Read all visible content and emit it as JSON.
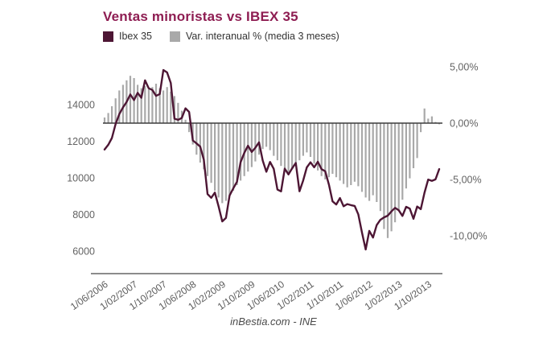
{
  "header": {
    "title": "Ventas minoristas vs IBEX 35"
  },
  "legend": {
    "items": [
      {
        "label": "Ibex 35",
        "color": "#4d1634"
      },
      {
        "label": "Var. interanual % (media 3 meses)",
        "color": "#a9a9a9"
      }
    ]
  },
  "footer": {
    "attribution": "inBestia.com - INE"
  },
  "colors": {
    "title": "#8e1d52",
    "line": "#4d1634",
    "bar": "#a9a9a9",
    "axis_text": "#636363",
    "zero_line": "#3c3c3c",
    "axis_line": "#8c8c8c",
    "background": "#ffffff"
  },
  "chart_data": {
    "type": "line+bar",
    "title": "Ventas minoristas vs IBEX 35",
    "x": [
      "1/06/2006",
      "1/07/2006",
      "1/08/2006",
      "1/09/2006",
      "1/10/2006",
      "1/11/2006",
      "1/12/2006",
      "1/01/2007",
      "1/02/2007",
      "1/03/2007",
      "1/04/2007",
      "1/05/2007",
      "1/06/2007",
      "1/07/2007",
      "1/08/2007",
      "1/09/2007",
      "1/10/2007",
      "1/11/2007",
      "1/12/2007",
      "1/01/2008",
      "1/02/2008",
      "1/03/2008",
      "1/04/2008",
      "1/05/2008",
      "1/06/2008",
      "1/07/2008",
      "1/08/2008",
      "1/09/2008",
      "1/10/2008",
      "1/11/2008",
      "1/12/2008",
      "1/01/2009",
      "1/02/2009",
      "1/03/2009",
      "1/04/2009",
      "1/05/2009",
      "1/06/2009",
      "1/07/2009",
      "1/08/2009",
      "1/09/2009",
      "1/10/2009",
      "1/11/2009",
      "1/12/2009",
      "1/01/2010",
      "1/02/2010",
      "1/03/2010",
      "1/04/2010",
      "1/05/2010",
      "1/06/2010",
      "1/07/2010",
      "1/08/2010",
      "1/09/2010",
      "1/10/2010",
      "1/11/2010",
      "1/12/2010",
      "1/01/2011",
      "1/02/2011",
      "1/03/2011",
      "1/04/2011",
      "1/05/2011",
      "1/06/2011",
      "1/07/2011",
      "1/08/2011",
      "1/09/2011",
      "1/10/2011",
      "1/11/2011",
      "1/12/2011",
      "1/01/2012",
      "1/02/2012",
      "1/03/2012",
      "1/04/2012",
      "1/05/2012",
      "1/06/2012",
      "1/07/2012",
      "1/08/2012",
      "1/09/2012",
      "1/10/2012",
      "1/11/2012",
      "1/12/2012",
      "1/01/2013",
      "1/02/2013",
      "1/03/2013",
      "1/04/2013",
      "1/05/2013",
      "1/06/2013",
      "1/07/2013",
      "1/08/2013",
      "1/09/2013",
      "1/10/2013",
      "1/11/2013",
      "1/12/2013",
      "1/01/2014"
    ],
    "x_ticks": [
      {
        "i": 0,
        "label": "1/06/2006"
      },
      {
        "i": 8,
        "label": "1/02/2007"
      },
      {
        "i": 16,
        "label": "1/10/2007"
      },
      {
        "i": 24,
        "label": "1/06/2008"
      },
      {
        "i": 32,
        "label": "1/02/2009"
      },
      {
        "i": 40,
        "label": "1/10/2009"
      },
      {
        "i": 48,
        "label": "1/06/2010"
      },
      {
        "i": 56,
        "label": "1/02/2011"
      },
      {
        "i": 64,
        "label": "1/10/2011"
      },
      {
        "i": 72,
        "label": "1/06/2012"
      },
      {
        "i": 80,
        "label": "1/02/2013"
      },
      {
        "i": 88,
        "label": "1/10/2013"
      }
    ],
    "series": [
      {
        "name": "Ibex 35",
        "type": "line",
        "axis": "left",
        "values": [
          11549,
          11805,
          12175,
          12935,
          13480,
          13849,
          14147,
          14553,
          14248,
          14641,
          14374,
          15329,
          14892,
          14802,
          14479,
          14576,
          15890,
          15759,
          15182,
          13229,
          13170,
          13269,
          13798,
          13600,
          12046,
          11881,
          11707,
          10987,
          9116,
          8910,
          9195,
          8450,
          7621,
          7815,
          9038,
          9424,
          9787,
          10855,
          11365,
          11756,
          11414,
          11644,
          11940,
          10947,
          10333,
          10871,
          10492,
          9359,
          9263,
          10499,
          10187,
          10514,
          10812,
          9267,
          9859,
          10571,
          10850,
          10576,
          10879,
          10476,
          10359,
          9630,
          8718,
          8546,
          8895,
          8449,
          8566,
          8509,
          8465,
          8008,
          7011,
          6090,
          7102,
          6738,
          7420,
          7708,
          7842,
          7934,
          8168,
          8362,
          8230,
          7920,
          8419,
          8321,
          7763,
          8434,
          8290,
          9186,
          9908,
          9838,
          9916,
          10480
        ]
      },
      {
        "name": "Var. interanual % (media 3 meses)",
        "type": "bar",
        "axis": "right",
        "values": [
          0.5,
          0.9,
          1.5,
          2.2,
          2.9,
          3.4,
          3.8,
          4.2,
          4.0,
          3.4,
          3.1,
          3.3,
          3.0,
          3.2,
          3.5,
          3.1,
          2.9,
          3.2,
          2.8,
          2.4,
          1.8,
          1.1,
          0.3,
          -0.8,
          -1.9,
          -2.8,
          -3.5,
          -4.1,
          -4.7,
          -5.3,
          -6.0,
          -6.6,
          -7.1,
          -6.9,
          -6.4,
          -6.0,
          -5.5,
          -5.1,
          -4.7,
          -4.3,
          -3.9,
          -3.4,
          -2.8,
          -2.3,
          -2.1,
          -2.4,
          -2.9,
          -3.3,
          -3.8,
          -4.2,
          -4.4,
          -4.1,
          -3.7,
          -3.3,
          -2.9,
          -2.6,
          -3.0,
          -3.6,
          -4.2,
          -4.7,
          -5.0,
          -4.8,
          -4.5,
          -4.8,
          -5.1,
          -5.4,
          -5.7,
          -5.5,
          -5.2,
          -5.6,
          -6.1,
          -6.6,
          -6.9,
          -6.4,
          -7.0,
          -7.8,
          -9.4,
          -10.2,
          -9.6,
          -8.8,
          -7.8,
          -6.8,
          -5.8,
          -4.9,
          -4.0,
          -3.1,
          -0.8,
          1.3,
          0.4,
          0.6,
          0.1,
          -0.1
        ]
      }
    ],
    "y_left": {
      "ticks": [
        "14000",
        "12000",
        "10000",
        "8000",
        "6000"
      ],
      "tick_values": [
        14000,
        12000,
        10000,
        8000,
        6000
      ],
      "range": [
        5000,
        16600
      ]
    },
    "y_right": {
      "ticks": [
        "5,00%",
        "0,00%",
        "-5,00%",
        "-10,00%"
      ],
      "tick_values": [
        5,
        0,
        -5,
        -10
      ],
      "range": [
        -13,
        6
      ]
    },
    "grid": "off",
    "legend_position": "top-left"
  }
}
